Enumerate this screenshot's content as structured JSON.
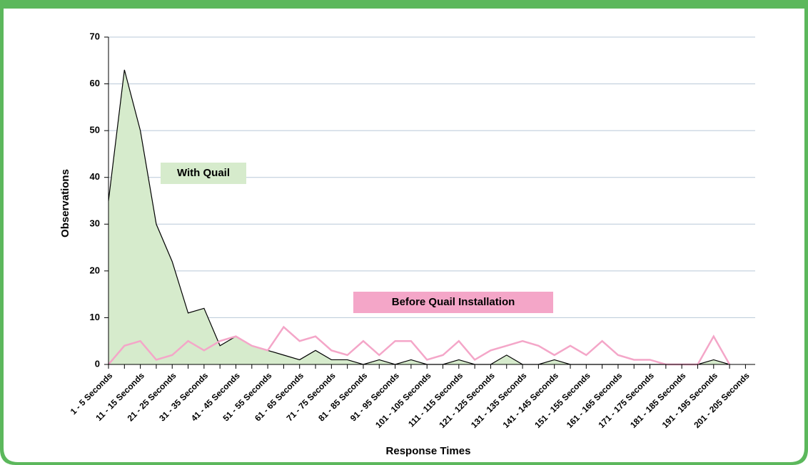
{
  "chart_data": {
    "type": "area-line",
    "x_label": "Response Times",
    "y_label": "Observations",
    "categories": [
      "1 - 5 Seconds",
      null,
      "11 - 15 Seconds",
      null,
      "21 - 25 Seconds",
      null,
      "31 - 35 Seconds",
      null,
      "41 - 45 Seconds",
      null,
      "51 - 55 Seconds",
      null,
      "61 - 65 Seconds",
      null,
      "71 - 75 Seconds",
      null,
      "81 - 85 Seconds",
      null,
      "91 - 95 Seconds",
      null,
      "101 - 105 Seconds",
      null,
      "111 - 115 Seconds",
      null,
      "121 - 125 Seconds",
      null,
      "131 - 135 Seconds",
      null,
      "141 - 145 Seconds",
      null,
      "151 - 155 Seconds",
      null,
      "161 - 165 Seconds",
      null,
      "171 - 175 Seconds",
      null,
      "181 - 185 Seconds",
      null,
      "191 - 195 Seconds",
      null,
      "201 - 205 Seconds"
    ],
    "series": [
      {
        "name": "With Quail",
        "color": "#d6ebcc",
        "values": [
          35,
          63,
          50,
          30,
          22,
          11,
          12,
          4,
          6,
          4,
          3,
          2,
          1,
          3,
          1,
          1,
          0,
          1,
          0,
          1,
          0,
          0,
          1,
          0,
          0,
          2,
          0,
          0,
          1,
          0,
          0,
          0,
          0,
          0,
          0,
          0,
          0,
          0,
          1,
          0,
          null
        ]
      },
      {
        "name": "Before Quail Installation",
        "color": "#f4a6c8",
        "values": [
          0,
          4,
          5,
          1,
          2,
          5,
          3,
          5,
          6,
          4,
          3,
          8,
          5,
          6,
          3,
          2,
          5,
          2,
          5,
          5,
          1,
          2,
          5,
          1,
          3,
          4,
          5,
          4,
          2,
          4,
          2,
          5,
          2,
          1,
          1,
          0,
          0,
          0,
          6,
          0,
          null
        ]
      }
    ],
    "ylim": [
      0,
      70
    ],
    "yticks": [
      0,
      10,
      20,
      30,
      40,
      50,
      60,
      70
    ],
    "grid": true
  }
}
